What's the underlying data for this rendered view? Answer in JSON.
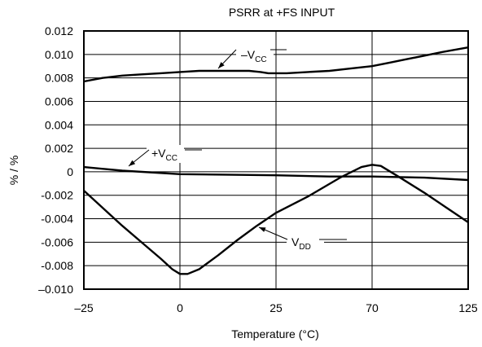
{
  "chart_data": {
    "type": "line",
    "title": "PSRR at +FS INPUT",
    "xlabel": "Temperature (°C)",
    "ylabel": "% / %",
    "x_ticks": [
      "–25",
      "0",
      "25",
      "70",
      "125"
    ],
    "y_ticks": [
      "0.012",
      "0.010",
      "0.008",
      "0.006",
      "0.004",
      "0.002",
      "0",
      "-0.002",
      "-0.004",
      "-0.006",
      "-0.008",
      "–0.010"
    ],
    "ylim": [
      -0.01,
      0.012
    ],
    "grid": true,
    "series": [
      {
        "name": "–VCC",
        "label_main": "–V",
        "label_sub": "CC",
        "x": [
          -25,
          -20,
          -15,
          -10,
          -5,
          0,
          5,
          10,
          15,
          18,
          21,
          23,
          25,
          30,
          40,
          50,
          60,
          70,
          80,
          90,
          100,
          110,
          125
        ],
        "y": [
          0.0077,
          0.008,
          0.0082,
          0.0083,
          0.0084,
          0.0085,
          0.0086,
          0.0086,
          0.0086,
          0.0086,
          0.0085,
          0.0084,
          0.0084,
          0.0084,
          0.0085,
          0.0086,
          0.0088,
          0.009,
          0.0093,
          0.0096,
          0.0099,
          0.0102,
          0.0106
        ]
      },
      {
        "name": "+VCC",
        "label_main": "+V",
        "label_sub": "CC",
        "x": [
          -25,
          -15,
          0,
          25,
          50,
          70,
          100,
          125
        ],
        "y": [
          0.0004,
          0.0001,
          -0.0002,
          -0.0003,
          -0.0004,
          -0.0004,
          -0.0005,
          -0.0007
        ]
      },
      {
        "name": "VDD",
        "label_main": "V",
        "label_sub": "DD",
        "x": [
          -25,
          -20,
          -15,
          -10,
          -5,
          -2,
          0,
          2,
          5,
          10,
          15,
          20,
          25,
          40,
          55,
          65,
          70,
          75,
          85,
          100,
          112,
          125
        ],
        "y": [
          -0.0016,
          -0.0031,
          -0.0046,
          -0.006,
          -0.0074,
          -0.0083,
          -0.0087,
          -0.0087,
          -0.0083,
          -0.0071,
          -0.0058,
          -0.0046,
          -0.0035,
          -0.0021,
          -0.0005,
          0.0004,
          0.0006,
          0.0005,
          -0.0004,
          -0.0018,
          -0.003,
          -0.0043
        ]
      }
    ]
  }
}
